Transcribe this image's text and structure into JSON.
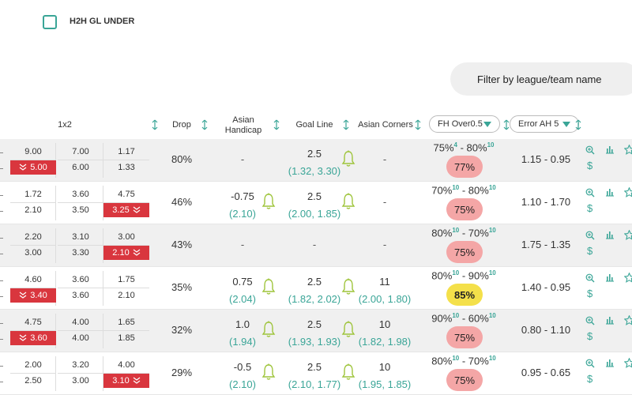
{
  "filters": {
    "h2h_label": "H2H GL UNDER",
    "search_label": "Filter by league/team name"
  },
  "columns": {
    "onex2": "1x2",
    "drop": "Drop",
    "asian_handicap": "Asian Handicap",
    "goal_line": "Goal Line",
    "asian_corners": "Asian Corners",
    "fh_select": "FH Over0.5",
    "error_select": "Error AH 5"
  },
  "colors": {
    "accent": "#3aa597",
    "drop_red": "#d9363e",
    "badge_pink": "#f4a6a6",
    "badge_yellow": "#f4e04a",
    "row_gray": "#f0f0f0"
  },
  "icons": {
    "zoom": "zoom-in-icon",
    "chart": "bar-chart-icon",
    "star": "star-icon",
    "dollar": "dollar-icon",
    "bell": "bell-icon",
    "sort": "sort-arrows-icon"
  },
  "rows": [
    {
      "odds_top": [
        "9.00",
        "7.00",
        "1.17"
      ],
      "odds_bottom": [
        "5.00",
        "6.00",
        "1.33"
      ],
      "drop_col": 0,
      "drop": "80%",
      "ah_main": "-",
      "ah_sub": "",
      "ah_bell": false,
      "gl_main": "2.5",
      "gl_sub": "(1.32, 3.30)",
      "ac_main": "-",
      "ac_sub": "",
      "fh_a": "75%",
      "fh_a_sup": "4",
      "fh_b": "80%",
      "fh_b_sup": "10",
      "badge": "77%",
      "badge_color": "pink",
      "err": "1.15 - 0.95"
    },
    {
      "odds_top": [
        "1.72",
        "3.60",
        "4.75"
      ],
      "odds_bottom": [
        "2.10",
        "3.50",
        "3.25"
      ],
      "drop_col": 2,
      "drop": "46%",
      "ah_main": "-0.75",
      "ah_sub": "(2.10)",
      "ah_bell": true,
      "gl_main": "2.5",
      "gl_sub": "(2.00, 1.85)",
      "ac_main": "-",
      "ac_sub": "",
      "fh_a": "70%",
      "fh_a_sup": "10",
      "fh_b": "80%",
      "fh_b_sup": "10",
      "badge": "75%",
      "badge_color": "pink",
      "err": "1.10 - 1.70"
    },
    {
      "odds_top": [
        "2.20",
        "3.10",
        "3.00"
      ],
      "odds_bottom": [
        "3.00",
        "3.30",
        "2.10"
      ],
      "drop_col": 2,
      "drop": "43%",
      "ah_main": "-",
      "ah_sub": "",
      "ah_bell": false,
      "gl_main": "-",
      "gl_sub": "",
      "ac_main": "-",
      "ac_sub": "",
      "fh_a": "80%",
      "fh_a_sup": "10",
      "fh_b": "70%",
      "fh_b_sup": "10",
      "badge": "75%",
      "badge_color": "pink",
      "err": "1.75 - 1.35"
    },
    {
      "odds_top": [
        "4.60",
        "3.60",
        "1.75"
      ],
      "odds_bottom": [
        "3.40",
        "3.60",
        "2.10"
      ],
      "drop_col": 0,
      "drop": "35%",
      "ah_main": "0.75",
      "ah_sub": "(2.04)",
      "ah_bell": true,
      "gl_main": "2.5",
      "gl_sub": "(1.82, 2.02)",
      "ac_main": "11",
      "ac_sub": "(2.00, 1.80)",
      "fh_a": "80%",
      "fh_a_sup": "10",
      "fh_b": "90%",
      "fh_b_sup": "10",
      "badge": "85%",
      "badge_color": "yellow",
      "err": "1.40 - 0.95"
    },
    {
      "odds_top": [
        "4.75",
        "4.00",
        "1.65"
      ],
      "odds_bottom": [
        "3.60",
        "4.00",
        "1.85"
      ],
      "drop_col": 0,
      "drop": "32%",
      "ah_main": "1.0",
      "ah_sub": "(1.94)",
      "ah_bell": true,
      "gl_main": "2.5",
      "gl_sub": "(1.93, 1.93)",
      "ac_main": "10",
      "ac_sub": "(1.82, 1.98)",
      "fh_a": "90%",
      "fh_a_sup": "10",
      "fh_b": "60%",
      "fh_b_sup": "10",
      "badge": "75%",
      "badge_color": "pink",
      "err": "0.80 - 1.10"
    },
    {
      "odds_top": [
        "2.00",
        "3.20",
        "4.00"
      ],
      "odds_bottom": [
        "2.50",
        "3.00",
        "3.10"
      ],
      "drop_col": 2,
      "drop": "29%",
      "ah_main": "-0.5",
      "ah_sub": "(2.10)",
      "ah_bell": true,
      "gl_main": "2.5",
      "gl_sub": "(2.10, 1.77)",
      "ac_main": "10",
      "ac_sub": "(1.95, 1.85)",
      "fh_a": "80%",
      "fh_a_sup": "10",
      "fh_b": "70%",
      "fh_b_sup": "10",
      "badge": "75%",
      "badge_color": "pink",
      "err": "0.95 - 0.65"
    }
  ]
}
